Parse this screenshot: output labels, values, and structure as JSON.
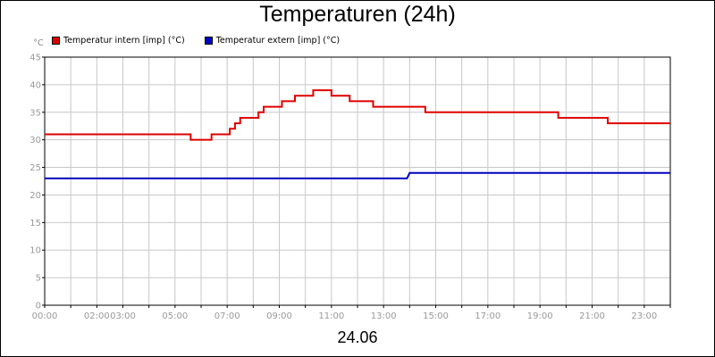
{
  "chart_data": {
    "type": "line",
    "title": "Temperaturen (24h)",
    "ylabel": "°C",
    "ylim": [
      0,
      45
    ],
    "yticks": [
      0,
      5,
      10,
      15,
      20,
      25,
      30,
      35,
      40,
      45
    ],
    "xlim": [
      0,
      24
    ],
    "xtick_labels": [
      "00:00",
      "02:00",
      "03:00",
      "05:00",
      "07:00",
      "09:00",
      "11:00",
      "13:00",
      "15:00",
      "17:00",
      "19:00",
      "21:00",
      "23:00"
    ],
    "xtick_hours": [
      0,
      2,
      3,
      5,
      7,
      9,
      11,
      13,
      15,
      17,
      19,
      21,
      23
    ],
    "date_label": "24.06",
    "grid": true,
    "legend_position": "top-left",
    "series": [
      {
        "name": "Temperatur intern [imp] (°C)",
        "color": "#e00000",
        "points": [
          [
            0,
            31
          ],
          [
            5.6,
            31
          ],
          [
            5.6,
            30
          ],
          [
            6.4,
            30
          ],
          [
            6.4,
            31
          ],
          [
            7.1,
            31
          ],
          [
            7.1,
            32
          ],
          [
            7.3,
            32
          ],
          [
            7.3,
            33
          ],
          [
            7.5,
            33
          ],
          [
            7.5,
            34
          ],
          [
            8.2,
            34
          ],
          [
            8.2,
            35
          ],
          [
            8.4,
            35
          ],
          [
            8.4,
            36
          ],
          [
            9.1,
            36
          ],
          [
            9.1,
            37
          ],
          [
            9.6,
            37
          ],
          [
            9.6,
            38
          ],
          [
            10.3,
            38
          ],
          [
            10.3,
            39
          ],
          [
            11.0,
            39
          ],
          [
            11.0,
            38
          ],
          [
            11.7,
            38
          ],
          [
            11.7,
            37
          ],
          [
            12.6,
            37
          ],
          [
            12.6,
            36
          ],
          [
            14.6,
            36
          ],
          [
            14.6,
            35
          ],
          [
            19.7,
            35
          ],
          [
            19.7,
            34
          ],
          [
            21.6,
            34
          ],
          [
            21.6,
            33
          ],
          [
            24,
            33
          ]
        ]
      },
      {
        "name": "Temperatur extern [imp] (°C)",
        "color": "#0000c0",
        "points": [
          [
            0,
            23
          ],
          [
            13.9,
            23
          ],
          [
            14.0,
            24
          ],
          [
            24,
            24
          ]
        ]
      }
    ]
  }
}
